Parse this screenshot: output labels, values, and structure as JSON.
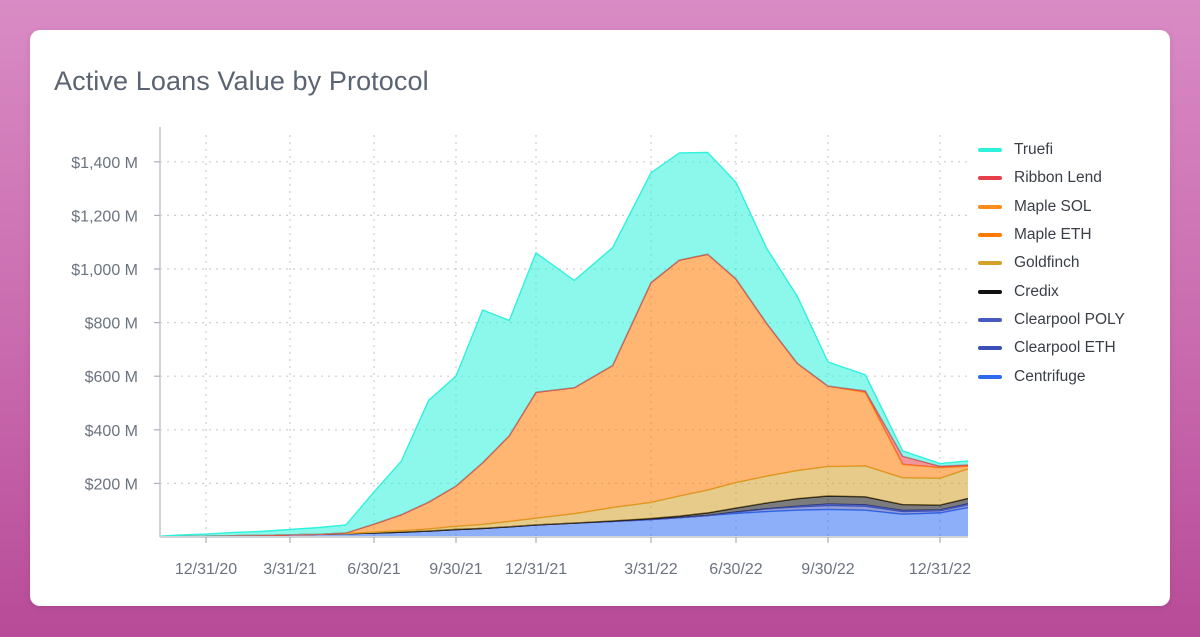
{
  "card": {
    "title": "Active Loans Value by Protocol"
  },
  "chart_data": {
    "type": "area",
    "stacked": true,
    "title": "Active Loans Value by Protocol",
    "xlabel": "",
    "ylabel": "",
    "ylim": [
      0,
      1500
    ],
    "grid": "dotted",
    "legend_position": "right",
    "y_ticks": [
      {
        "value": 200,
        "label": "$200 M"
      },
      {
        "value": 400,
        "label": "$400 M"
      },
      {
        "value": 600,
        "label": "$600 M"
      },
      {
        "value": 800,
        "label": "$800 M"
      },
      {
        "value": 1000,
        "label": "$1,000 M"
      },
      {
        "value": 1200,
        "label": "$1,200 M"
      },
      {
        "value": 1400,
        "label": "$1,400 M"
      }
    ],
    "x_ticks": [
      "12/31/20",
      "3/31/21",
      "6/30/21",
      "9/30/21",
      "12/31/21",
      "3/31/22",
      "6/30/22",
      "9/30/22",
      "12/31/22"
    ],
    "x": [
      "9/30/20",
      "10/31/20",
      "11/30/20",
      "12/31/20",
      "1/31/21",
      "2/28/21",
      "3/31/21",
      "4/30/21",
      "5/31/21",
      "6/30/21",
      "7/31/21",
      "8/31/21",
      "9/30/21",
      "10/31/21",
      "11/30/21",
      "12/31/21",
      "1/31/22",
      "2/28/22",
      "3/31/22",
      "4/30/22",
      "5/31/22",
      "6/30/22",
      "7/31/22",
      "8/31/22",
      "9/30/22",
      "10/31/22",
      "11/30/22",
      "12/31/22",
      "1/20/23"
    ],
    "series": [
      {
        "name": "Centrifuge",
        "color": "#2f6bf2",
        "values": [
          0,
          1,
          2,
          3,
          5,
          6,
          8,
          10,
          12,
          15,
          18,
          22,
          28,
          32,
          38,
          45,
          52,
          58,
          65,
          72,
          80,
          88,
          95,
          100,
          103,
          100,
          85,
          90,
          110
        ]
      },
      {
        "name": "Clearpool ETH",
        "color": "#3a4fb8",
        "values": [
          0,
          0,
          0,
          0,
          0,
          0,
          0,
          0,
          0,
          0,
          0,
          0,
          0,
          0,
          0,
          0,
          0,
          0,
          0,
          0,
          0,
          5,
          10,
          12,
          15,
          15,
          10,
          8,
          10
        ]
      },
      {
        "name": "Clearpool POLY",
        "color": "#4a5bc0",
        "values": [
          0,
          0,
          0,
          0,
          0,
          0,
          0,
          0,
          0,
          0,
          0,
          0,
          0,
          0,
          0,
          0,
          0,
          0,
          0,
          0,
          0,
          0,
          0,
          3,
          5,
          5,
          4,
          3,
          4
        ]
      },
      {
        "name": "Credix",
        "color": "#111111",
        "values": [
          0,
          0,
          0,
          0,
          0,
          0,
          0,
          0,
          0,
          0,
          0,
          0,
          0,
          0,
          0,
          0,
          0,
          2,
          4,
          6,
          10,
          15,
          22,
          28,
          30,
          30,
          22,
          18,
          20
        ]
      },
      {
        "name": "Goldfinch",
        "color": "#d4a12a",
        "values": [
          0,
          0,
          0,
          0,
          0,
          0,
          0,
          0,
          1,
          3,
          5,
          8,
          12,
          15,
          20,
          25,
          35,
          50,
          60,
          75,
          85,
          95,
          100,
          105,
          110,
          115,
          100,
          100,
          110
        ]
      },
      {
        "name": "Maple ETH",
        "color": "#ff7a00",
        "values": [
          0,
          0,
          0,
          0,
          0,
          0,
          0,
          0,
          2,
          30,
          60,
          100,
          150,
          230,
          320,
          470,
          470,
          530,
          820,
          880,
          880,
          760,
          570,
          400,
          300,
          275,
          50,
          40,
          10
        ]
      },
      {
        "name": "Maple SOL",
        "color": "#ff8c1a",
        "values": [
          0,
          0,
          0,
          0,
          0,
          0,
          0,
          0,
          0,
          0,
          0,
          0,
          0,
          0,
          0,
          0,
          0,
          0,
          0,
          0,
          0,
          0,
          0,
          0,
          0,
          0,
          0,
          0,
          0
        ]
      },
      {
        "name": "Ribbon Lend",
        "color": "#e8404a",
        "values": [
          0,
          0,
          0,
          0,
          0,
          0,
          0,
          0,
          0,
          0,
          0,
          0,
          0,
          0,
          0,
          0,
          0,
          0,
          0,
          0,
          0,
          0,
          0,
          0,
          0,
          5,
          30,
          5,
          5
        ]
      },
      {
        "name": "Truefi",
        "color": "#2ef2dc",
        "values": [
          0,
          2,
          5,
          8,
          12,
          15,
          20,
          25,
          30,
          120,
          200,
          380,
          410,
          570,
          430,
          520,
          400,
          440,
          410,
          400,
          380,
          360,
          280,
          250,
          90,
          60,
          20,
          10,
          15
        ]
      }
    ]
  }
}
